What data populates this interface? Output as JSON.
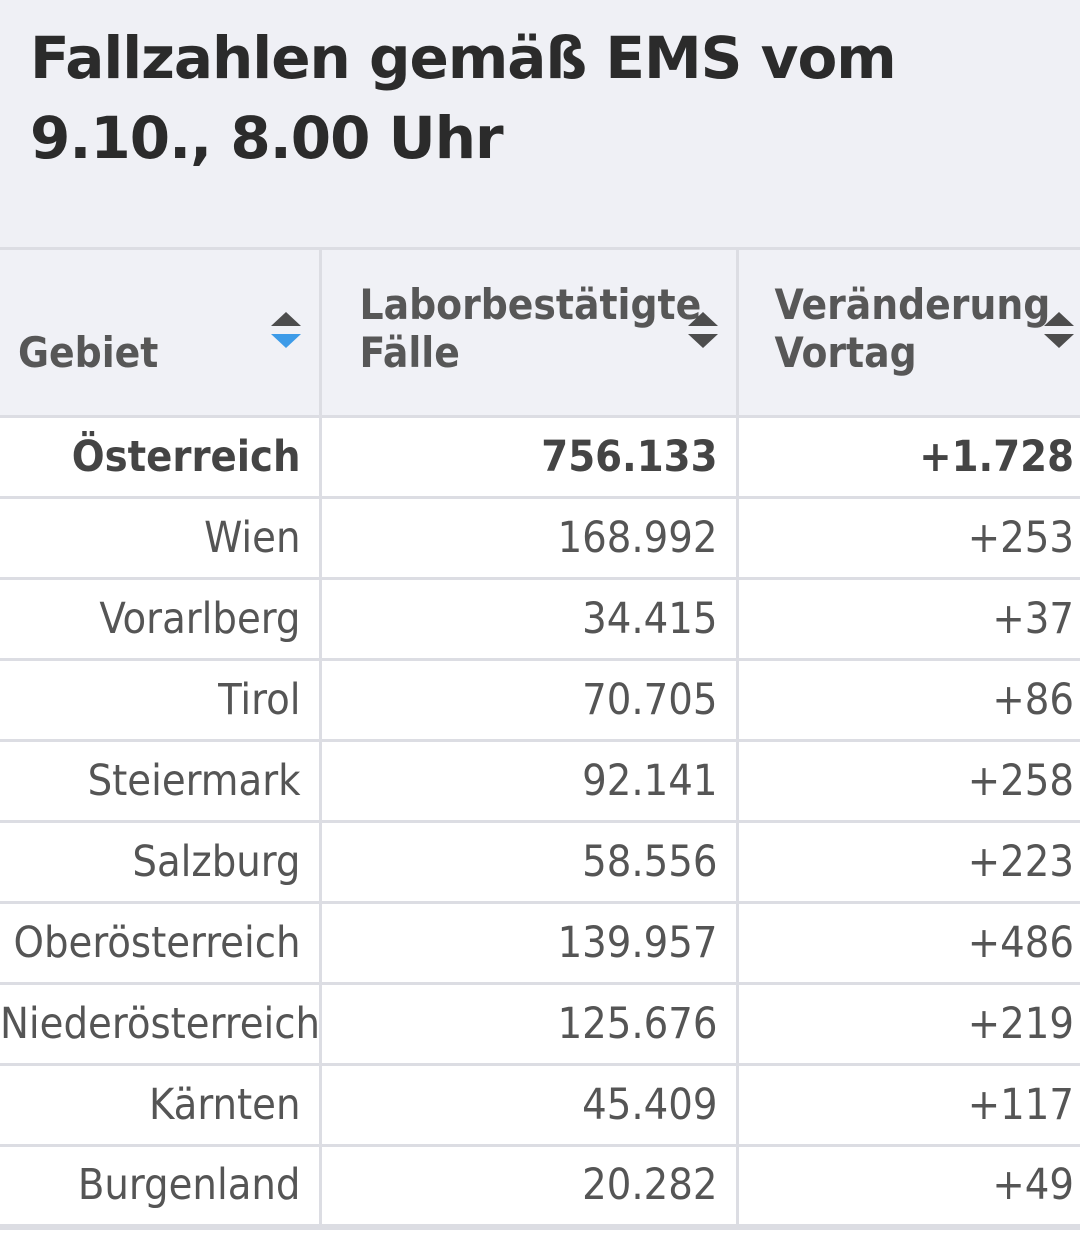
{
  "title": "Fallzahlen gemäß EMS vom 9.10., 8.00 Uhr",
  "colors": {
    "sort_active": "#3d9be8",
    "sort_inactive": "#4d4d4d"
  },
  "chart_data": {
    "type": "table",
    "columns": [
      {
        "label": "Gebiet",
        "sort": "descending-active"
      },
      {
        "label": "Laborbestätigte Fälle",
        "sort": "none"
      },
      {
        "label": "Veränderung Vortag",
        "sort": "none"
      }
    ],
    "rows": [
      {
        "gebiet": "Österreich",
        "faelle": "756.133",
        "veraenderung": "+1.728",
        "bold": true
      },
      {
        "gebiet": "Wien",
        "faelle": "168.992",
        "veraenderung": "+253"
      },
      {
        "gebiet": "Vorarlberg",
        "faelle": "34.415",
        "veraenderung": "+37"
      },
      {
        "gebiet": "Tirol",
        "faelle": "70.705",
        "veraenderung": "+86"
      },
      {
        "gebiet": "Steiermark",
        "faelle": "92.141",
        "veraenderung": "+258"
      },
      {
        "gebiet": "Salzburg",
        "faelle": "58.556",
        "veraenderung": "+223"
      },
      {
        "gebiet": "Oberösterreich",
        "faelle": "139.957",
        "veraenderung": "+486"
      },
      {
        "gebiet": "Niederösterreich",
        "faelle": "125.676",
        "veraenderung": "+219"
      },
      {
        "gebiet": "Kärnten",
        "faelle": "45.409",
        "veraenderung": "+117"
      },
      {
        "gebiet": "Burgenland",
        "faelle": "20.282",
        "veraenderung": "+49"
      }
    ]
  }
}
